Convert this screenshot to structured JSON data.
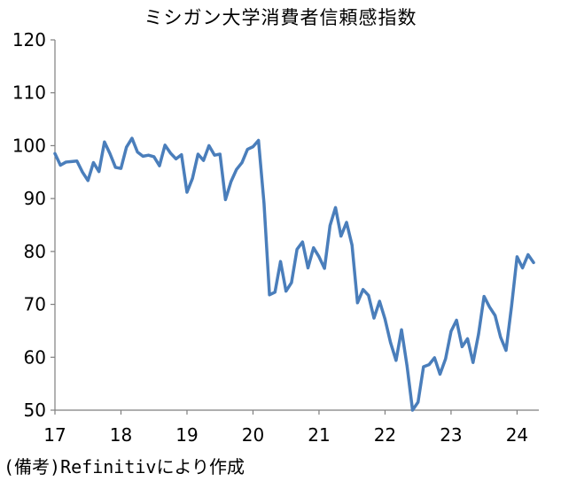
{
  "chart_data": {
    "type": "line",
    "title": "ミシガン大学消費者信頼感指数",
    "xlabel": "",
    "ylabel": "",
    "ylim": [
      50,
      120
    ],
    "yticks": [
      50,
      60,
      70,
      80,
      90,
      100,
      110,
      120
    ],
    "xlim": [
      2017,
      2024.33
    ],
    "xtick_values": [
      2017,
      2018,
      2019,
      2020,
      2021,
      2022,
      2023,
      2024
    ],
    "xtick_labels": [
      "17",
      "18",
      "19",
      "20",
      "21",
      "22",
      "23",
      "24"
    ],
    "grid": false,
    "legend": "none",
    "series": [
      {
        "color": "#4a7ebb",
        "x": [
          2017.0,
          2017.083,
          2017.167,
          2017.25,
          2017.333,
          2017.417,
          2017.5,
          2017.583,
          2017.667,
          2017.75,
          2017.833,
          2017.917,
          2018.0,
          2018.083,
          2018.167,
          2018.25,
          2018.333,
          2018.417,
          2018.5,
          2018.583,
          2018.667,
          2018.75,
          2018.833,
          2018.917,
          2019.0,
          2019.083,
          2019.167,
          2019.25,
          2019.333,
          2019.417,
          2019.5,
          2019.583,
          2019.667,
          2019.75,
          2019.833,
          2019.917,
          2020.0,
          2020.083,
          2020.167,
          2020.25,
          2020.333,
          2020.417,
          2020.5,
          2020.583,
          2020.667,
          2020.75,
          2020.833,
          2020.917,
          2021.0,
          2021.083,
          2021.167,
          2021.25,
          2021.333,
          2021.417,
          2021.5,
          2021.583,
          2021.667,
          2021.75,
          2021.833,
          2021.917,
          2022.0,
          2022.083,
          2022.167,
          2022.25,
          2022.333,
          2022.417,
          2022.5,
          2022.583,
          2022.667,
          2022.75,
          2022.833,
          2022.917,
          2023.0,
          2023.083,
          2023.167,
          2023.25,
          2023.333,
          2023.417,
          2023.5,
          2023.583,
          2023.667,
          2023.75,
          2023.833,
          2023.917,
          2024.0,
          2024.083,
          2024.167,
          2024.25
        ],
        "values": [
          98.5,
          96.3,
          96.9,
          97.0,
          97.1,
          95.0,
          93.4,
          96.8,
          95.1,
          100.7,
          98.5,
          95.9,
          95.7,
          99.7,
          101.4,
          98.8,
          98.0,
          98.2,
          97.9,
          96.2,
          100.1,
          98.6,
          97.5,
          98.3,
          91.2,
          93.8,
          98.4,
          97.2,
          100.0,
          98.2,
          98.4,
          89.8,
          93.2,
          95.5,
          96.8,
          99.3,
          99.8,
          101.0,
          89.1,
          71.8,
          72.3,
          78.1,
          72.5,
          74.1,
          80.4,
          81.8,
          76.9,
          80.7,
          79.0,
          76.8,
          84.9,
          88.3,
          82.9,
          85.5,
          81.2,
          70.3,
          72.8,
          71.7,
          67.4,
          70.6,
          67.2,
          62.8,
          59.4,
          65.2,
          58.4,
          50.0,
          51.5,
          58.2,
          58.6,
          59.9,
          56.8,
          59.7,
          64.9,
          67.0,
          62.0,
          63.5,
          59.0,
          64.4,
          71.5,
          69.5,
          67.9,
          63.8,
          61.3,
          69.7,
          79.0,
          76.9,
          79.4,
          77.9
        ]
      }
    ]
  },
  "source_note": "(備考)Refinitivにより作成"
}
